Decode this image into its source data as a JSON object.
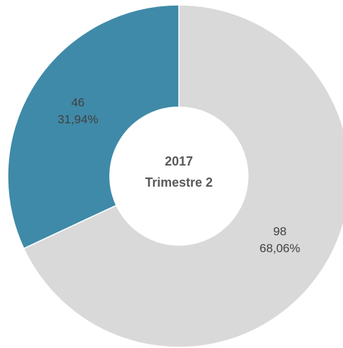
{
  "chart_data": {
    "type": "donut",
    "center_lines": [
      "2017",
      "Trimestre 2"
    ],
    "categories": [
      null,
      null
    ],
    "values": [
      98,
      46
    ],
    "percent_labels": [
      "68,06%",
      "31,94%"
    ],
    "colors": [
      "#d9d9d9",
      "#3f8aa8"
    ]
  }
}
